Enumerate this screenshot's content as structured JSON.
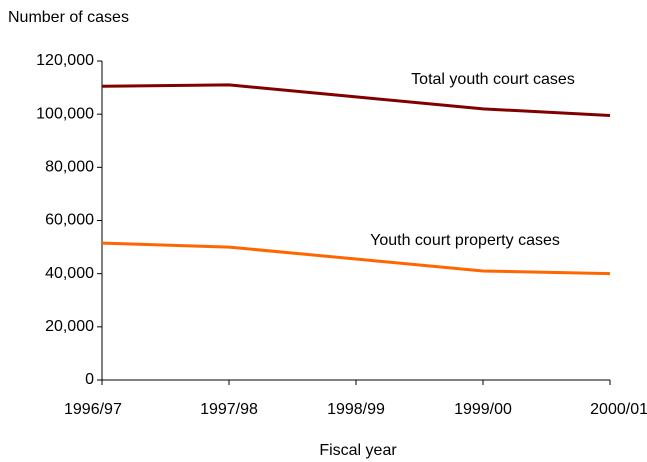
{
  "chart_data": {
    "type": "line",
    "title": "Number of cases",
    "xlabel": "Fiscal year",
    "categories": [
      "1996/97",
      "1997/98",
      "1998/99",
      "1999/00",
      "2000/01"
    ],
    "series": [
      {
        "name": "Total youth court cases",
        "color": "#800000",
        "values": [
          110500,
          111000,
          106500,
          102000,
          99500
        ]
      },
      {
        "name": "Youth court property cases",
        "color": "#ff6600",
        "values": [
          51500,
          50000,
          45500,
          41000,
          40000
        ]
      }
    ],
    "ylim": [
      0,
      120000
    ],
    "yticks": [
      0,
      {
        "value": 20000,
        "label": "20,000"
      },
      {
        "value": 40000,
        "label": "40,000"
      },
      {
        "value": 60000,
        "label": "60,000"
      },
      {
        "value": 80000,
        "label": "80,000"
      },
      {
        "value": 100000,
        "label": "100,000"
      },
      {
        "value": 120000,
        "label": "120,000"
      }
    ],
    "grid": false
  }
}
